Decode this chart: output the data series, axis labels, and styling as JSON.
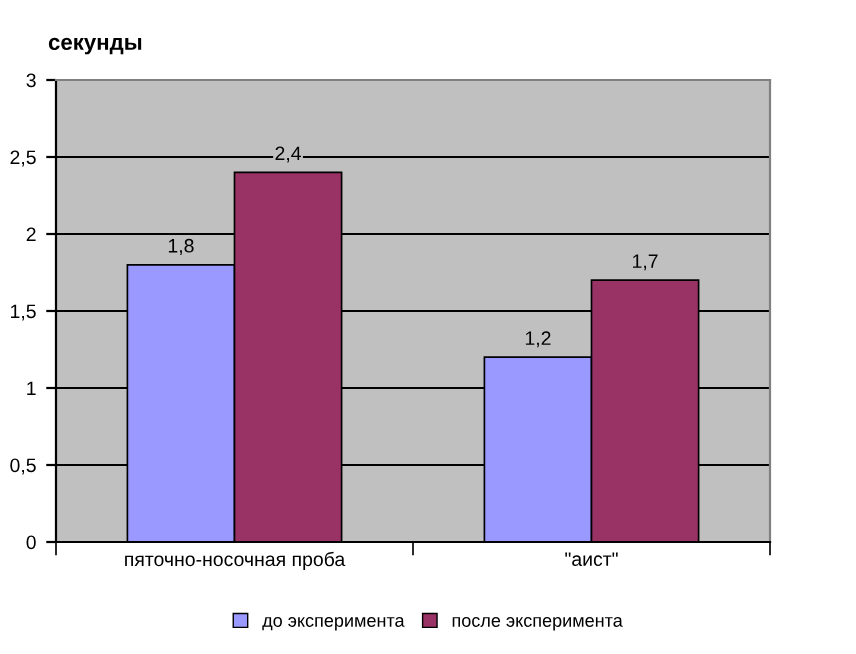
{
  "chart_data": {
    "type": "bar",
    "title": "секунды",
    "categories": [
      "пяточно-носочная проба",
      "\"аист\""
    ],
    "series": [
      {
        "name": "до эксперимента",
        "color": "#9999ff",
        "values": [
          1.8,
          1.2
        ],
        "value_labels": [
          "1,8",
          "1,2"
        ]
      },
      {
        "name": "после эксперимента",
        "color": "#993366",
        "values": [
          2.4,
          1.7
        ],
        "value_labels": [
          "2,4",
          "1,7"
        ]
      }
    ],
    "ylim": [
      0,
      3
    ],
    "yticks": [
      0,
      {
        "value": 0.5,
        "label": "0,5"
      },
      1,
      {
        "value": 1.5,
        "label": "1,5"
      },
      2,
      {
        "value": 2.5,
        "label": "2,5"
      },
      3
    ],
    "grid": "y",
    "legend": "bottom"
  }
}
